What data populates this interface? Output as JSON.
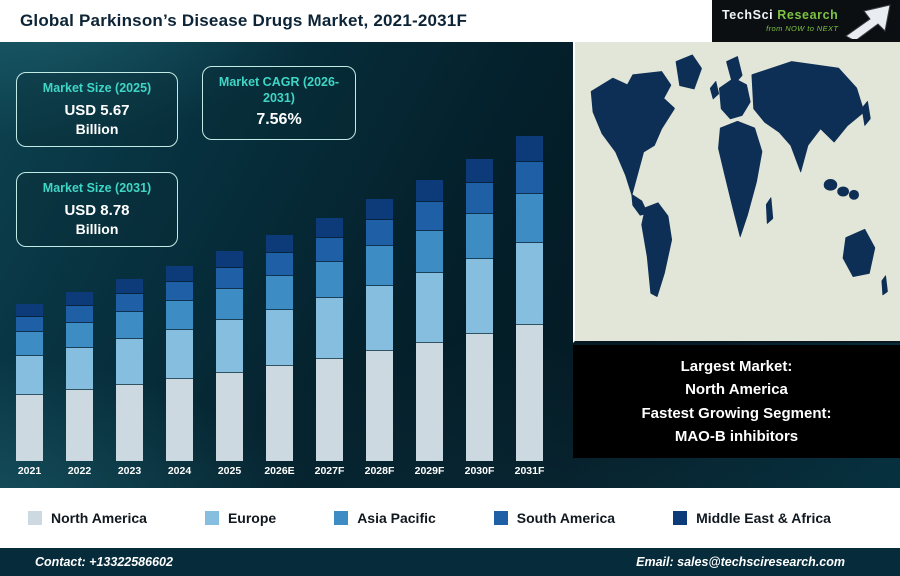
{
  "header": {
    "title": "Global Parkinson’s Disease Drugs Market, 2021-2031F"
  },
  "logo": {
    "brand_primary": "TechSci",
    "brand_secondary": " Research",
    "tagline": "from NOW to NEXT"
  },
  "info_boxes": [
    {
      "label": "Market Size (2025)",
      "value": "USD 5.67",
      "unit": "Billion"
    },
    {
      "label": "Market CAGR (2026-2031)",
      "value": "7.56%",
      "unit": ""
    },
    {
      "label": "Market Size (2031)",
      "value": "USD 8.78",
      "unit": "Billion"
    }
  ],
  "note": {
    "lines": [
      "Largest Market:",
      "North America",
      "Fastest Growing Segment:",
      "MAO-B inhibitors"
    ]
  },
  "footer": {
    "contact": "Contact: +13322586602",
    "email": "Email: sales@techsciresearch.com"
  },
  "colors": {
    "accent_teal": "#3fd6c5",
    "header_text": "#0d2436",
    "note_bg": "#000000",
    "footer_bg": "#062b3b",
    "map_land": "#0e2f55",
    "map_sea": "#e2e6d9"
  },
  "chart_data": {
    "type": "bar",
    "stacked": true,
    "title": "Global Parkinson’s Disease Drugs Market, 2021-2031F",
    "xlabel": "",
    "ylabel": "",
    "unit_hint": "USD Billion (estimated from Market Size callouts)",
    "ylim": [
      0,
      9
    ],
    "grid": false,
    "legend_position": "bottom",
    "categories": [
      "2021",
      "2022",
      "2023",
      "2024",
      "2025",
      "2026E",
      "2027F",
      "2028F",
      "2029F",
      "2030F",
      "2031F"
    ],
    "totals": [
      4.24,
      4.56,
      4.9,
      5.27,
      5.67,
      6.1,
      6.56,
      7.06,
      7.59,
      8.16,
      8.78
    ],
    "series": [
      {
        "name": "North America",
        "color": "#cdd9e1",
        "values": [
          1.78,
          1.92,
          2.06,
          2.21,
          2.38,
          2.56,
          2.76,
          2.97,
          3.19,
          3.43,
          3.69
        ]
      },
      {
        "name": "Europe",
        "color": "#85bede",
        "values": [
          1.06,
          1.14,
          1.23,
          1.32,
          1.42,
          1.53,
          1.64,
          1.77,
          1.9,
          2.04,
          2.2
        ]
      },
      {
        "name": "Asia Pacific",
        "color": "#3d8dc4",
        "values": [
          0.64,
          0.68,
          0.74,
          0.79,
          0.85,
          0.92,
          0.98,
          1.06,
          1.14,
          1.22,
          1.32
        ]
      },
      {
        "name": "South America",
        "color": "#1e5fa5",
        "values": [
          0.42,
          0.46,
          0.49,
          0.53,
          0.57,
          0.61,
          0.66,
          0.71,
          0.76,
          0.82,
          0.88
        ]
      },
      {
        "name": "Middle East & Africa",
        "color": "#0d3a78",
        "values": [
          0.34,
          0.36,
          0.39,
          0.42,
          0.45,
          0.49,
          0.52,
          0.56,
          0.61,
          0.65,
          0.7
        ]
      }
    ]
  }
}
